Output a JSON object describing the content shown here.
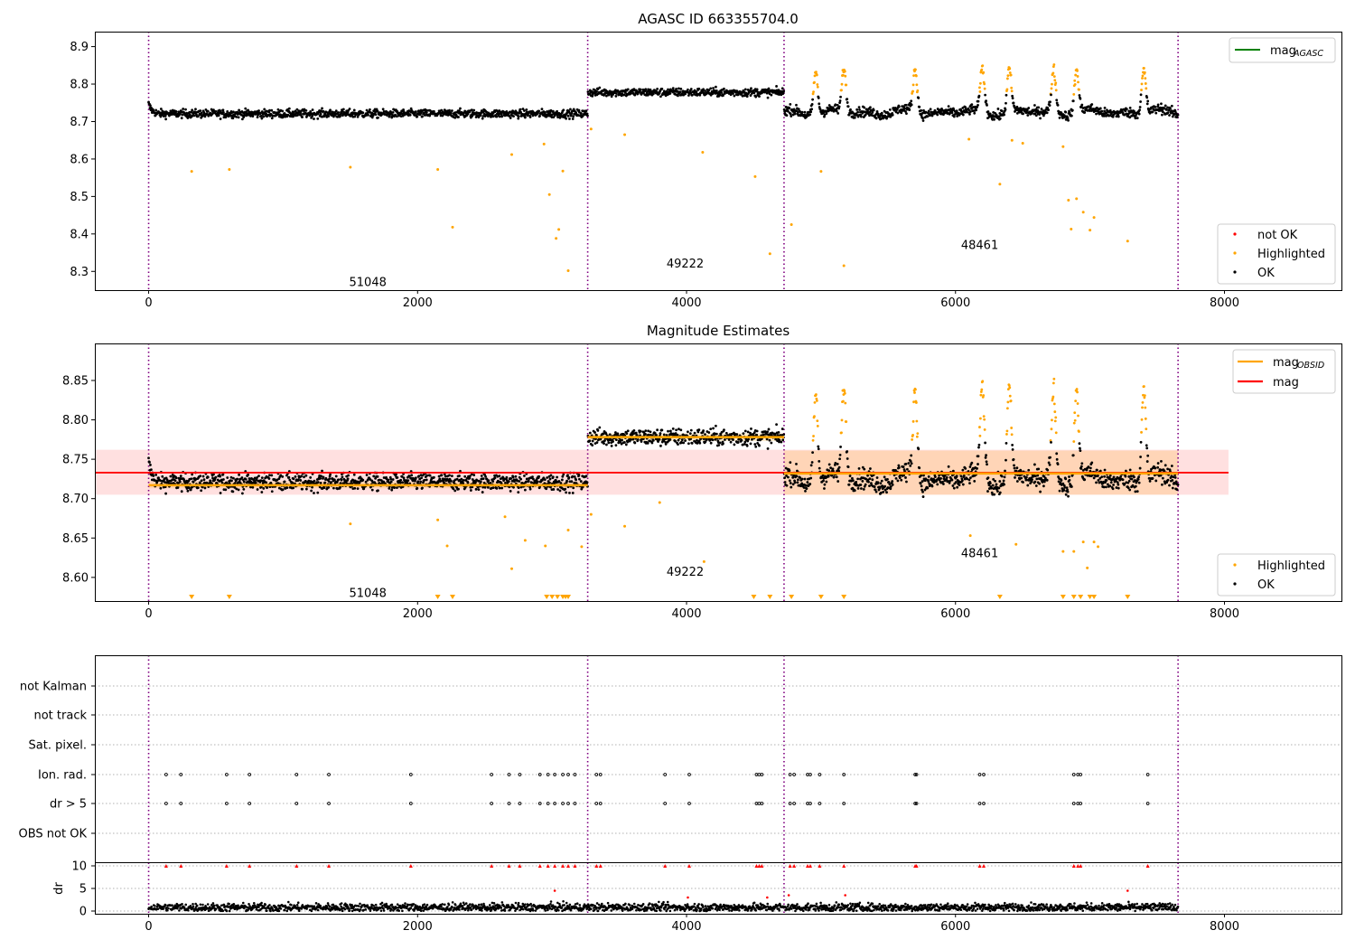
{
  "figure": {
    "title_top": "AGASC ID 663355704.0",
    "title_mid": "Magnitude Estimates"
  },
  "chart_data": [
    {
      "type": "scatter",
      "title": "AGASC ID 663355704.0",
      "xlim": [
        -400,
        8870
      ],
      "ylim": [
        8.25,
        8.94
      ],
      "x_ticks": [
        0,
        2000,
        4000,
        6000,
        8000
      ],
      "y_ticks": [
        8.3,
        8.4,
        8.5,
        8.6,
        8.7,
        8.8,
        8.9
      ],
      "grid": false,
      "obs_boundaries": [
        0,
        3265,
        4725,
        7655
      ],
      "obs_labels": [
        {
          "x": 1630,
          "y": 8.27,
          "text": "51048"
        },
        {
          "x": 3990,
          "y": 8.32,
          "text": "49222"
        },
        {
          "x": 6180,
          "y": 8.37,
          "text": "48461"
        }
      ],
      "segments": [
        {
          "x": [
            0,
            3265
          ],
          "level": 8.721
        },
        {
          "x": [
            3265,
            4725
          ],
          "level": 8.778
        },
        {
          "x": [
            4725,
            7655
          ],
          "level": 8.725,
          "flares": [
            4960,
            5170,
            5700,
            6200,
            6400,
            6730,
            6900,
            7400
          ]
        }
      ],
      "highlighted_outliers": [
        {
          "x": 320,
          "y": 8.567
        },
        {
          "x": 600,
          "y": 8.572
        },
        {
          "x": 1500,
          "y": 8.578
        },
        {
          "x": 2150,
          "y": 8.572
        },
        {
          "x": 2260,
          "y": 8.418
        },
        {
          "x": 2700,
          "y": 8.612
        },
        {
          "x": 2940,
          "y": 8.64
        },
        {
          "x": 2980,
          "y": 8.505
        },
        {
          "x": 3030,
          "y": 8.388
        },
        {
          "x": 3050,
          "y": 8.412
        },
        {
          "x": 3080,
          "y": 8.568
        },
        {
          "x": 3120,
          "y": 8.302
        },
        {
          "x": 3290,
          "y": 8.68
        },
        {
          "x": 3540,
          "y": 8.665
        },
        {
          "x": 4120,
          "y": 8.618
        },
        {
          "x": 4510,
          "y": 8.553
        },
        {
          "x": 4620,
          "y": 8.347
        },
        {
          "x": 4780,
          "y": 8.425
        },
        {
          "x": 5000,
          "y": 8.567
        },
        {
          "x": 5170,
          "y": 8.315
        },
        {
          "x": 6100,
          "y": 8.653
        },
        {
          "x": 6330,
          "y": 8.533
        },
        {
          "x": 6420,
          "y": 8.65
        },
        {
          "x": 6500,
          "y": 8.642
        },
        {
          "x": 6800,
          "y": 8.633
        },
        {
          "x": 6840,
          "y": 8.49
        },
        {
          "x": 6860,
          "y": 8.413
        },
        {
          "x": 6900,
          "y": 8.494
        },
        {
          "x": 6950,
          "y": 8.458
        },
        {
          "x": 7000,
          "y": 8.41
        },
        {
          "x": 7030,
          "y": 8.444
        },
        {
          "x": 7280,
          "y": 8.381
        }
      ],
      "legend_top": [
        {
          "label": "mag",
          "sub": "AGASC",
          "color": "#008000",
          "kind": "line"
        }
      ],
      "legend_bottom": [
        {
          "label": "not OK",
          "color": "#ff0000",
          "kind": "point"
        },
        {
          "label": "Highlighted",
          "color": "#ffa500",
          "kind": "point"
        },
        {
          "label": "OK",
          "color": "#000000",
          "kind": "point"
        }
      ]
    },
    {
      "type": "scatter",
      "title": "Magnitude Estimates",
      "xlim": [
        -400,
        8870
      ],
      "ylim": [
        8.57,
        8.897
      ],
      "x_ticks": [
        0,
        2000,
        4000,
        6000,
        8000
      ],
      "y_ticks": [
        8.6,
        8.65,
        8.7,
        8.75,
        8.8,
        8.85
      ],
      "grid": false,
      "obs_boundaries": [
        0,
        3265,
        4725,
        7655
      ],
      "obs_labels": [
        {
          "x": 1630,
          "y": 8.58,
          "text": "51048"
        },
        {
          "x": 3990,
          "y": 8.607,
          "text": "49222"
        },
        {
          "x": 6180,
          "y": 8.63,
          "text": "48461"
        }
      ],
      "mag": {
        "value": 8.733,
        "band": [
          8.705,
          8.762
        ],
        "x": [
          -400,
          8030
        ],
        "color": "#ff0000"
      },
      "mag_obsid": [
        {
          "x": [
            0,
            3265
          ],
          "value": 8.717,
          "band": [
            8.713,
            8.722
          ]
        },
        {
          "x": [
            3265,
            4725
          ],
          "value": 8.778,
          "band": [
            8.773,
            8.783
          ]
        },
        {
          "x": [
            4725,
            7655
          ],
          "value": 8.732,
          "band": [
            8.705,
            8.761
          ]
        }
      ],
      "highlighted_outliers": [
        {
          "x": 1500,
          "y": 8.668
        },
        {
          "x": 2150,
          "y": 8.673
        },
        {
          "x": 2220,
          "y": 8.64
        },
        {
          "x": 2650,
          "y": 8.677
        },
        {
          "x": 2700,
          "y": 8.611
        },
        {
          "x": 2800,
          "y": 8.647
        },
        {
          "x": 2950,
          "y": 8.64
        },
        {
          "x": 3120,
          "y": 8.66
        },
        {
          "x": 3220,
          "y": 8.639
        },
        {
          "x": 3290,
          "y": 8.68
        },
        {
          "x": 3540,
          "y": 8.665
        },
        {
          "x": 3800,
          "y": 8.695
        },
        {
          "x": 4130,
          "y": 8.62
        },
        {
          "x": 6110,
          "y": 8.653
        },
        {
          "x": 6450,
          "y": 8.642
        },
        {
          "x": 6800,
          "y": 8.633
        },
        {
          "x": 6880,
          "y": 8.633
        },
        {
          "x": 6950,
          "y": 8.645
        },
        {
          "x": 6980,
          "y": 8.612
        },
        {
          "x": 7030,
          "y": 8.645
        },
        {
          "x": 7060,
          "y": 8.639
        }
      ],
      "offscale_markers_x": [
        320,
        600,
        2150,
        2260,
        2960,
        3000,
        3040,
        3080,
        3100,
        3120,
        4500,
        4620,
        4780,
        5000,
        5170,
        6330,
        6800,
        6880,
        6930,
        7000,
        7030,
        7280
      ],
      "legend_top": [
        {
          "label": "mag",
          "sub": "OBSID",
          "color": "#ffa500",
          "kind": "line"
        },
        {
          "label": "mag",
          "sub": "",
          "color": "#ff0000",
          "kind": "line"
        }
      ],
      "legend_bottom": [
        {
          "label": "Highlighted",
          "color": "#ffa500",
          "kind": "point"
        },
        {
          "label": "OK",
          "color": "#000000",
          "kind": "point"
        }
      ]
    },
    {
      "type": "scatter",
      "title": "",
      "xlim": [
        -400,
        8870
      ],
      "x_ticks": [
        0,
        2000,
        4000,
        6000,
        8000
      ],
      "obs_boundaries": [
        0,
        3265,
        4725,
        7655
      ],
      "flag_rows": [
        "not Kalman",
        "not track",
        "Sat. pixel.",
        "Ion. rad.",
        "dr > 5",
        "OBS not OK"
      ],
      "flagged_times": {
        "Ion. rad.": [
          130,
          240,
          580,
          750,
          1100,
          1340,
          1950,
          2550,
          2680,
          2760,
          2910,
          2970,
          3020,
          3080,
          3120,
          3170,
          3330,
          3360,
          3840,
          4020,
          4520,
          4540,
          4560,
          4770,
          4800,
          4900,
          4920,
          4990,
          5170,
          5700,
          5710,
          6180,
          6210,
          6880,
          6910,
          6930,
          7430
        ],
        "dr > 5": [
          130,
          240,
          580,
          750,
          1100,
          1340,
          1950,
          2550,
          2680,
          2760,
          2910,
          2970,
          3020,
          3080,
          3120,
          3170,
          3330,
          3360,
          3840,
          4020,
          4520,
          4540,
          4560,
          4770,
          4800,
          4900,
          4920,
          4990,
          5170,
          5700,
          5710,
          6180,
          6210,
          6880,
          6910,
          6930,
          7430
        ]
      },
      "dr": {
        "ylabel": "dr",
        "ylim": [
          -0.6,
          10.6
        ],
        "y_ticks": [
          0,
          5,
          10
        ],
        "typical": [
          0,
          2
        ],
        "clipped_value": 10,
        "isolated": [
          {
            "x": 3020,
            "y": 4.5
          },
          {
            "x": 4010,
            "y": 3.0
          },
          {
            "x": 4600,
            "y": 3.0
          },
          {
            "x": 4760,
            "y": 3.5
          },
          {
            "x": 5180,
            "y": 3.5
          },
          {
            "x": 7280,
            "y": 4.5
          }
        ]
      }
    }
  ]
}
